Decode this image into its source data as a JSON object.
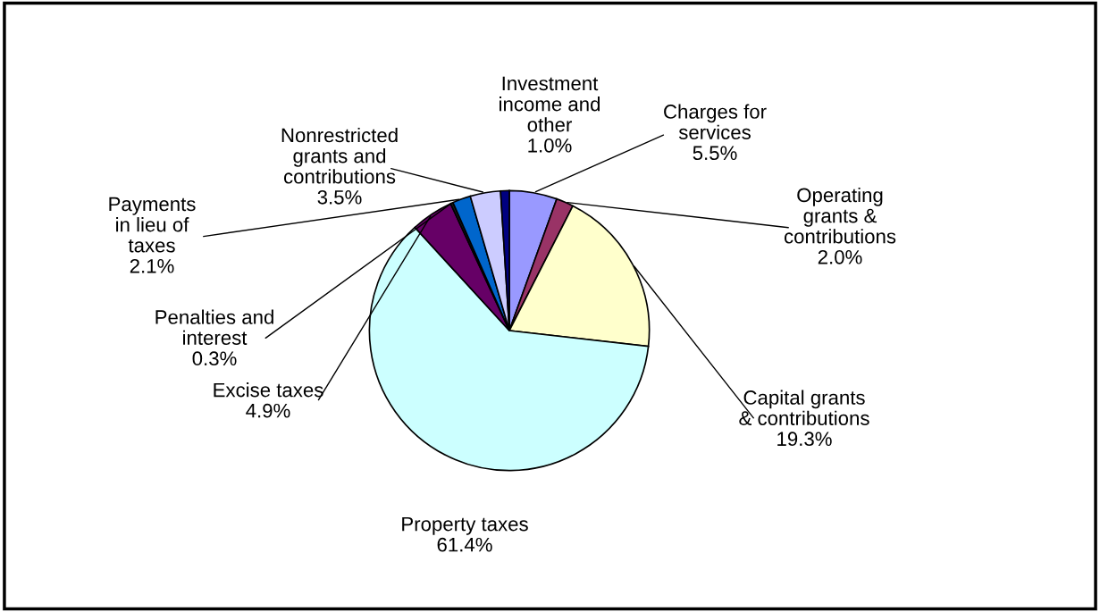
{
  "chart_data": {
    "type": "pie",
    "categories": [
      "Charges for\nservices",
      "Operating\ngrants &\ncontributions",
      "Capital grants\n& contributions",
      "Property taxes",
      "Excise taxes",
      "Penalties and\ninterest",
      "Payments\nin lieu of\ntaxes",
      "Nonrestricted\ngrants and\ncontributions",
      "Investment\nincome and\nother"
    ],
    "values": [
      5.5,
      2.0,
      19.3,
      61.4,
      4.9,
      0.3,
      2.1,
      3.5,
      1.0
    ],
    "colors": [
      "#9999ff",
      "#993366",
      "#ffffcc",
      "#ccffff",
      "#660066",
      "#1a1a1a",
      "#0066cc",
      "#ccccff",
      "#000080"
    ],
    "value_labels": [
      "5.5%",
      "2.0%",
      "19.3%",
      "61.4%",
      "4.9%",
      "0.3%",
      "2.1%",
      "3.5%",
      "1.0%"
    ]
  }
}
